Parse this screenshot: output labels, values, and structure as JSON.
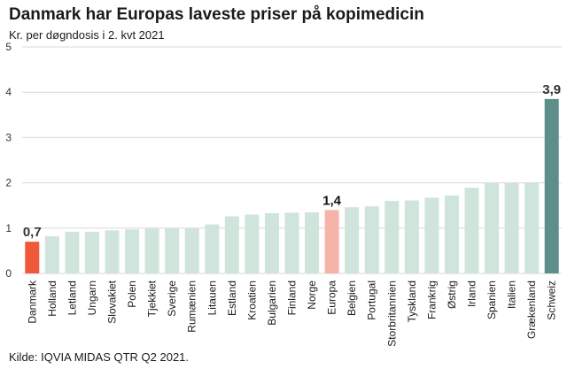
{
  "chart_data": {
    "type": "bar",
    "title": "Danmark har Europas laveste priser på kopimedicin",
    "subtitle": "Kr. per døgndosis i 2. kvt 2021",
    "source": "Kilde: IQVIA MIDAS QTR Q2 2021.",
    "xlabel": "",
    "ylabel": "",
    "ylim": [
      0,
      5
    ],
    "yticks": [
      "0",
      "1",
      "2",
      "3",
      "4",
      "5"
    ],
    "grid": true,
    "categories": [
      "Danmark",
      "Holland",
      "Letland",
      "Ungarn",
      "Slovakiet",
      "Polen",
      "Tjekkiet",
      "Sverige",
      "Rumænien",
      "Litauen",
      "Estland",
      "Kroatien",
      "Bulgarien",
      "Finland",
      "Norge",
      "Europa",
      "Belgien",
      "Portugal",
      "Storbritannien",
      "Tyskland",
      "Frankrig",
      "Østrig",
      "Irland",
      "Spanien",
      "Italien",
      "Grækenland",
      "Schweiz"
    ],
    "values": [
      0.7,
      0.82,
      0.92,
      0.92,
      0.95,
      0.97,
      0.99,
      0.99,
      1.0,
      1.08,
      1.26,
      1.3,
      1.33,
      1.34,
      1.35,
      1.4,
      1.46,
      1.48,
      1.6,
      1.61,
      1.67,
      1.72,
      1.89,
      1.99,
      2.0,
      2.01,
      3.85
    ],
    "data_labels": [
      {
        "index": 0,
        "text": "0,7",
        "color": "#333333"
      },
      {
        "index": 15,
        "text": "1,4",
        "color": "#111111"
      },
      {
        "index": 26,
        "text": "3,9",
        "color": "#333333"
      }
    ],
    "colors": {
      "default": "#cfe4db",
      "Danmark": "#f0583a",
      "Europa": "#f6b3aa",
      "Schweiz": "#5e8e8a",
      "grid": "#d9d9d9"
    }
  }
}
